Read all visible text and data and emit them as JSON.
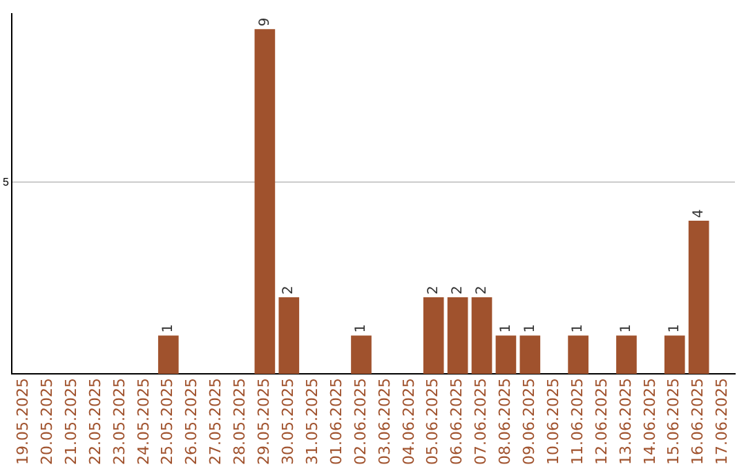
{
  "chart_data": {
    "type": "bar",
    "categories": [
      "19.05.2025",
      "20.05.2025",
      "21.05.2025",
      "22.05.2025",
      "23.05.2025",
      "24.05.2025",
      "25.05.2025",
      "26.05.2025",
      "27.05.2025",
      "28.05.2025",
      "29.05.2025",
      "30.05.2025",
      "31.05.2025",
      "01.06.2025",
      "02.06.2025",
      "03.06.2025",
      "04.06.2025",
      "05.06.2025",
      "06.06.2025",
      "07.06.2025",
      "08.06.2025",
      "09.06.2025",
      "10.06.2025",
      "11.06.2025",
      "12.06.2025",
      "13.06.2025",
      "14.06.2025",
      "15.06.2025",
      "16.06.2025",
      "17.06.2025"
    ],
    "values": [
      0,
      0,
      0,
      0,
      0,
      0,
      1,
      0,
      0,
      0,
      9,
      2,
      0,
      0,
      1,
      0,
      0,
      2,
      2,
      2,
      1,
      1,
      0,
      1,
      0,
      1,
      0,
      1,
      4,
      0
    ],
    "value_labels": [
      null,
      null,
      null,
      null,
      null,
      null,
      "1",
      null,
      null,
      null,
      "9",
      "2",
      null,
      null,
      "1",
      null,
      null,
      "2",
      "2",
      "2",
      "1",
      "1",
      null,
      "1",
      null,
      "1",
      null,
      "1",
      "4",
      null
    ],
    "color": "#a0522d",
    "ylim": [
      0,
      9.4
    ],
    "yticks": [
      5
    ],
    "grid": "y",
    "legend": false
  }
}
